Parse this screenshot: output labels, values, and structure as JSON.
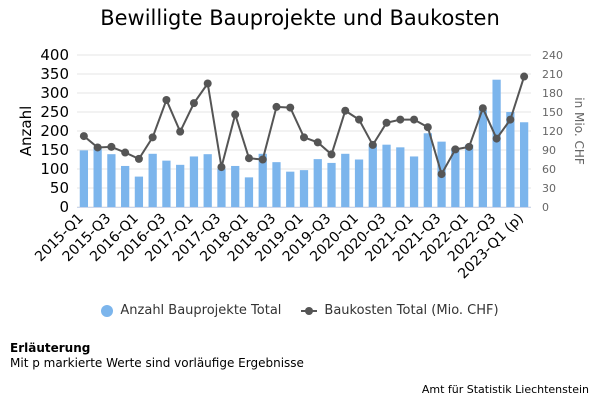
{
  "colors": {
    "bars": "#7cb5ec",
    "line": "#555555",
    "grid": "#e6e6e6"
  },
  "legend": {
    "bars_label": "Anzahl Bauprojekte Total",
    "line_label": "Baukosten Total (Mio. CHF)"
  },
  "notes": {
    "heading": "Erläuterung",
    "text": "Mit p markierte Werte sind vorläufige Ergebnisse"
  },
  "credit": "Amt für Statistik Liechtenstein",
  "chart_data": {
    "type": "bar",
    "title": "Bewilligte Bauprojekte und Baukosten",
    "ylabel": "Anzahl",
    "y2label": "in Mio. CHF",
    "ylim": [
      0,
      400
    ],
    "y2lim": [
      0,
      240
    ],
    "yticks": [
      0,
      50,
      100,
      150,
      200,
      250,
      300,
      350,
      400
    ],
    "y2ticks": [
      0,
      30,
      60,
      90,
      120,
      150,
      180,
      210,
      240
    ],
    "grid": true,
    "legend_position": "bottom",
    "categories": [
      "2015-Q1",
      "2015-Q2",
      "2015-Q3",
      "2015-Q4",
      "2016-Q1",
      "2016-Q2",
      "2016-Q3",
      "2016-Q4",
      "2017-Q1",
      "2017-Q2",
      "2017-Q3",
      "2017-Q4",
      "2018-Q1",
      "2018-Q2",
      "2018-Q3",
      "2018-Q4",
      "2019-Q1",
      "2019-Q2",
      "2019-Q3",
      "2019-Q4",
      "2020-Q1",
      "2020-Q2",
      "2020-Q3",
      "2020-Q4",
      "2021-Q1",
      "2021-Q2",
      "2021-Q3",
      "2021-Q4",
      "2022-Q1",
      "2022-Q2",
      "2022-Q3",
      "2022-Q4",
      "2023-Q1 (p)"
    ],
    "xticklabels_shown": [
      "2015-Q1",
      "2015-Q3",
      "2016-Q1",
      "2016-Q3",
      "2017-Q1",
      "2017-Q3",
      "2018-Q1",
      "2018-Q3",
      "2019-Q1",
      "2019-Q3",
      "2020-Q1",
      "2020-Q3",
      "2021-Q1",
      "2021-Q3",
      "2022-Q1",
      "2022-Q3",
      "2023-Q1 (p)"
    ],
    "series": [
      {
        "name": "Anzahl Bauprojekte Total",
        "type": "bar",
        "axis": "left",
        "values": [
          149,
          157,
          139,
          108,
          80,
          140,
          122,
          111,
          133,
          139,
          101,
          108,
          78,
          140,
          118,
          93,
          97,
          126,
          116,
          140,
          125,
          165,
          164,
          157,
          133,
          194,
          172,
          155,
          164,
          255,
          335,
          250,
          223
        ]
      },
      {
        "name": "Baukosten Total (Mio. CHF)",
        "type": "line",
        "axis": "right",
        "values": [
          112,
          94,
          95,
          86,
          76,
          110,
          169,
          119,
          164,
          195,
          63,
          146,
          77,
          75,
          158,
          157,
          110,
          102,
          83,
          152,
          138,
          98,
          133,
          138,
          138,
          126,
          52,
          91,
          95,
          156,
          108,
          138,
          206
        ]
      }
    ]
  }
}
